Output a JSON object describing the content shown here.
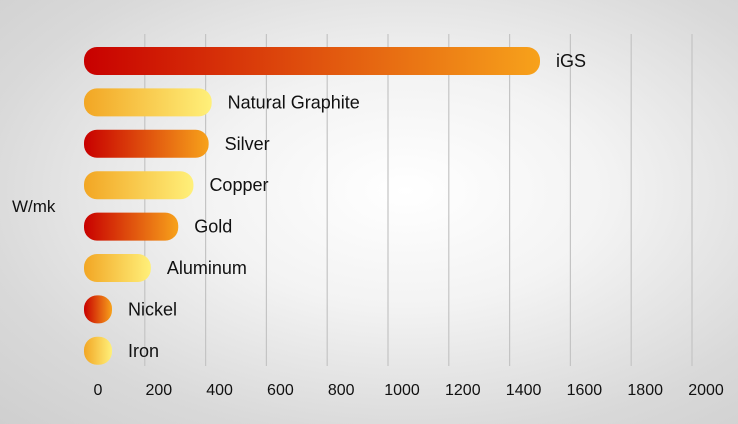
{
  "chart_data": {
    "type": "bar",
    "orientation": "horizontal",
    "ylabel": "W/mk",
    "categories": [
      "iGS",
      "Natural Graphite",
      "Silver",
      "Copper",
      "Gold",
      "Aluminum",
      "Nickel",
      "Iron"
    ],
    "values": [
      1500,
      420,
      410,
      360,
      310,
      220,
      60,
      50
    ],
    "xlim": [
      0,
      2000
    ],
    "xticks": [
      "0",
      "200",
      "400",
      "600",
      "800",
      "1000",
      "1200",
      "1400",
      "1600",
      "1800",
      "2000"
    ],
    "grid": true,
    "legend": false,
    "colors": {
      "red_start": "#c80000",
      "red_end": "#f7a21b",
      "gold_start": "#f2a624",
      "gold_end": "#fff07a"
    },
    "bar_style": [
      "red",
      "gold",
      "red",
      "gold",
      "red",
      "gold",
      "red",
      "gold"
    ]
  }
}
